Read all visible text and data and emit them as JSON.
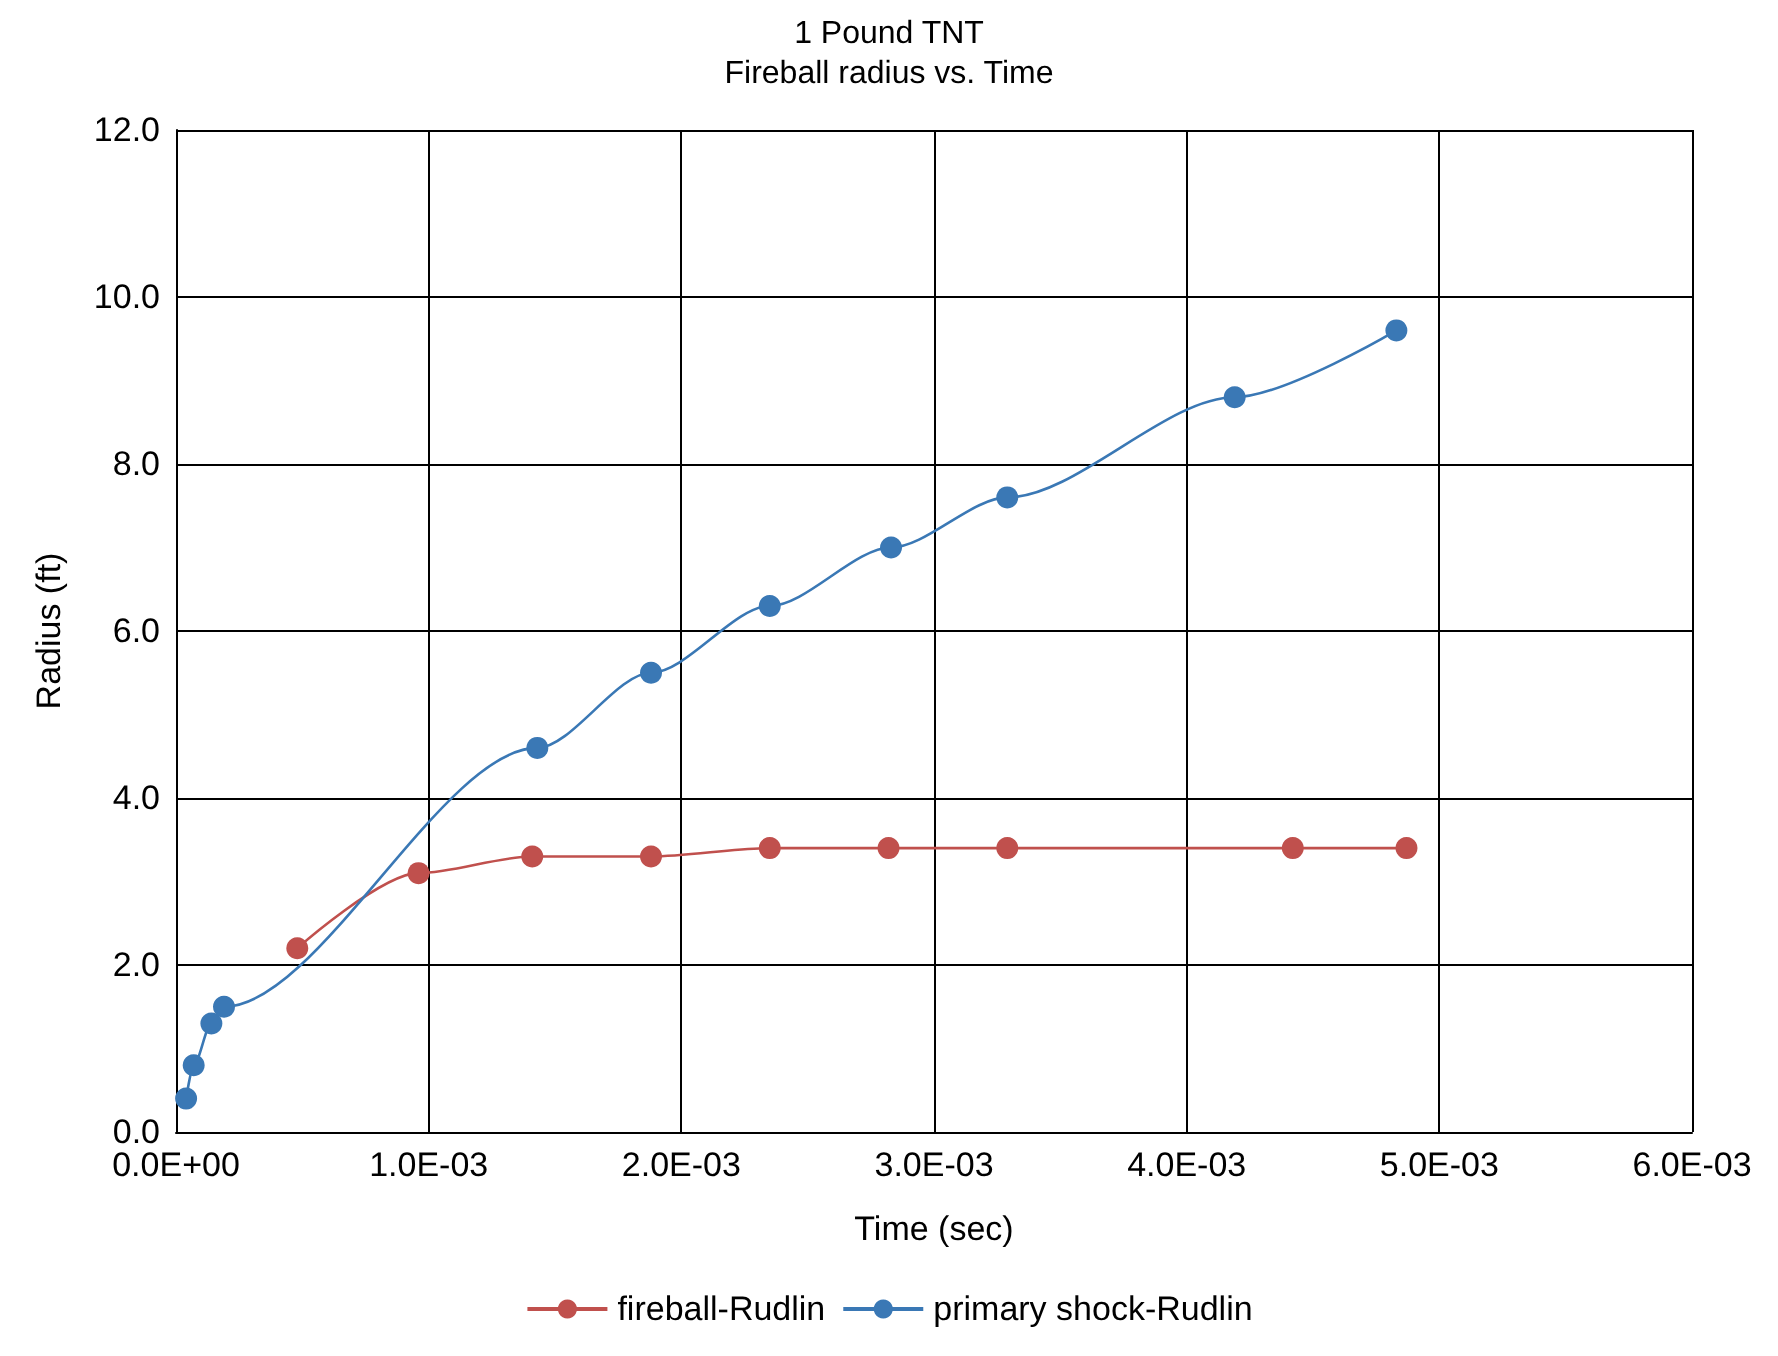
{
  "chart_data": {
    "type": "line",
    "title": "1 Pound TNT",
    "subtitle": "Fireball radius vs. Time",
    "xlabel": "Time (sec)",
    "ylabel": "Radius (ft)",
    "series": [
      {
        "name": "fireball-Rudlin",
        "color": "#c0504d",
        "x": [
          0.00048,
          0.00096,
          0.00141,
          0.00188,
          0.00235,
          0.00282,
          0.00329,
          0.00442,
          0.00487
        ],
        "values": [
          2.2,
          3.1,
          3.3,
          3.3,
          3.4,
          3.4,
          3.4,
          3.4,
          3.4
        ]
      },
      {
        "name": "primary shock-Rudlin",
        "color": "#3a78b5",
        "x": [
          4e-05,
          7e-05,
          0.00014,
          0.00019,
          0.00143,
          0.00188,
          0.00235,
          0.00283,
          0.00329,
          0.00419,
          0.00483
        ],
        "values": [
          0.4,
          0.8,
          1.3,
          1.5,
          4.6,
          5.5,
          6.3,
          7.0,
          7.6,
          8.8,
          9.6
        ]
      }
    ],
    "xlim": [
      0,
      0.006
    ],
    "xticks": [
      {
        "value": 0,
        "label": "0.0E+00"
      },
      {
        "value": 0.001,
        "label": "1.0E-03"
      },
      {
        "value": 0.002,
        "label": "2.0E-03"
      },
      {
        "value": 0.003,
        "label": "3.0E-03"
      },
      {
        "value": 0.004,
        "label": "4.0E-03"
      },
      {
        "value": 0.005,
        "label": "5.0E-03"
      },
      {
        "value": 0.006,
        "label": "6.0E-03"
      }
    ],
    "ylim": [
      0,
      12
    ],
    "yticks": [
      {
        "value": 0,
        "label": "0.0"
      },
      {
        "value": 2,
        "label": "2.0"
      },
      {
        "value": 4,
        "label": "4.0"
      },
      {
        "value": 6,
        "label": "6.0"
      },
      {
        "value": 8,
        "label": "8.0"
      },
      {
        "value": 10,
        "label": "10.0"
      },
      {
        "value": 12,
        "label": "12.0"
      }
    ],
    "grid": true,
    "legend": "bottom",
    "marker": "circle",
    "line_style": "solid"
  }
}
